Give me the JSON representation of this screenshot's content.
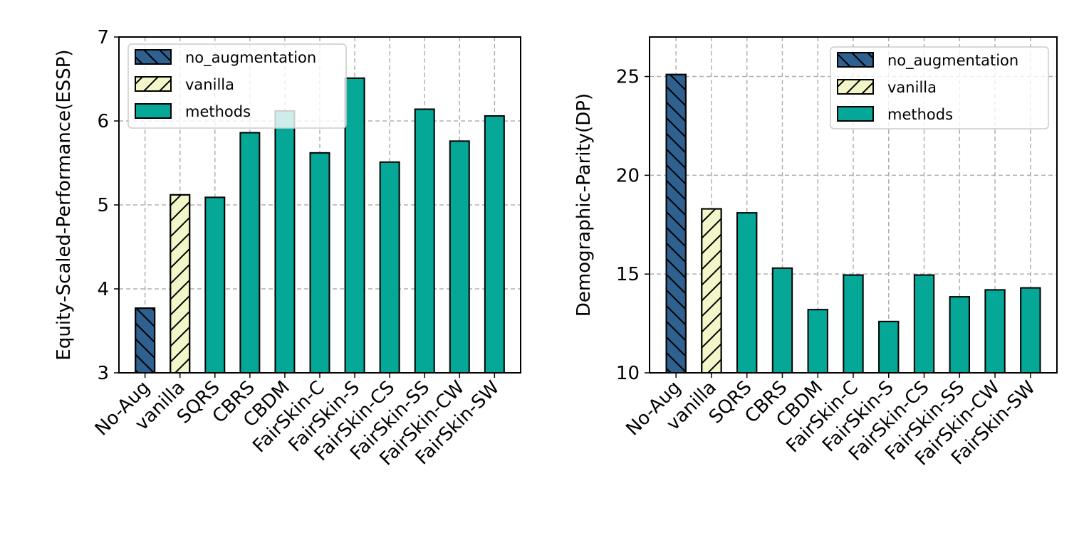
{
  "colors": {
    "no_augmentation": "#2e6090",
    "vanilla": "#f2f6c8",
    "methods": "#05a796",
    "grid": "#b0b0b0",
    "edge": "#000000"
  },
  "legend": {
    "items": [
      {
        "key": "no_augmentation",
        "label": "no_augmentation",
        "hatch": "backslash"
      },
      {
        "key": "vanilla",
        "label": "vanilla",
        "hatch": "slash"
      },
      {
        "key": "methods",
        "label": "methods",
        "hatch": "none"
      }
    ]
  },
  "chart_data": [
    {
      "type": "bar",
      "title": "",
      "xlabel": "",
      "ylabel": "Equity-Scaled-Performance(ESSP)",
      "ylim": [
        3,
        7
      ],
      "yticks": [
        3,
        4,
        5,
        6,
        7
      ],
      "grid": true,
      "legend_position": "top-left",
      "categories": [
        "No-Aug",
        "vanilla",
        "SQRS",
        "CBRS",
        "CBDM",
        "FairSkin-C",
        "FairSkin-S",
        "FairSkin-CS",
        "FairSkin-SS",
        "FairSkin-CW",
        "FairSkin-SW"
      ],
      "groups": [
        "no_augmentation",
        "vanilla",
        "methods",
        "methods",
        "methods",
        "methods",
        "methods",
        "methods",
        "methods",
        "methods",
        "methods"
      ],
      "values": [
        3.77,
        5.12,
        5.09,
        5.86,
        6.12,
        5.62,
        6.51,
        5.51,
        6.14,
        5.76,
        6.06
      ]
    },
    {
      "type": "bar",
      "title": "",
      "xlabel": "",
      "ylabel": "Demographic-Parity(DP)",
      "ylim": [
        10,
        27
      ],
      "yticks": [
        10,
        15,
        20,
        25
      ],
      "grid": true,
      "legend_position": "top-right",
      "categories": [
        "No-Aug",
        "vanilla",
        "SQRS",
        "CBRS",
        "CBDM",
        "FairSkin-C",
        "FairSkin-S",
        "FairSkin-CS",
        "FairSkin-SS",
        "FairSkin-CW",
        "FairSkin-SW"
      ],
      "groups": [
        "no_augmentation",
        "vanilla",
        "methods",
        "methods",
        "methods",
        "methods",
        "methods",
        "methods",
        "methods",
        "methods",
        "methods"
      ],
      "values": [
        25.1,
        18.3,
        18.1,
        15.3,
        13.2,
        14.95,
        12.6,
        14.95,
        13.85,
        14.2,
        14.3
      ]
    }
  ]
}
